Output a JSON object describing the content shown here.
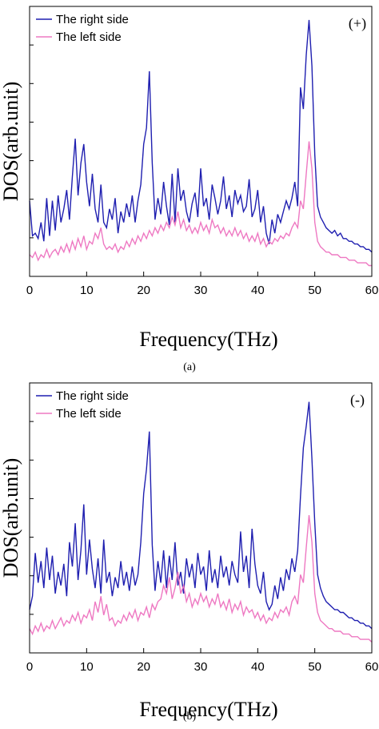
{
  "chart_data": [
    {
      "type": "line",
      "caption": "(a)",
      "annotation": "(+)",
      "xlabel": "Frequency(THz)",
      "ylabel": "DOS(arb.unit)",
      "xlim": [
        0,
        60
      ],
      "xticks": [
        0,
        10,
        20,
        30,
        40,
        50,
        60
      ],
      "ylim": [
        0,
        10
      ],
      "legend": "upper left",
      "x": [
        0,
        0.5,
        1,
        1.5,
        2,
        2.5,
        3,
        3.5,
        4,
        4.5,
        5,
        5.5,
        6,
        6.5,
        7,
        7.5,
        8,
        8.5,
        9,
        9.5,
        10,
        10.5,
        11,
        11.5,
        12,
        12.5,
        13,
        13.5,
        14,
        14.5,
        15,
        15.5,
        16,
        16.5,
        17,
        17.5,
        18,
        18.5,
        19,
        19.5,
        20,
        20.5,
        21,
        21.5,
        22,
        22.5,
        23,
        23.5,
        24,
        24.5,
        25,
        25.5,
        26,
        26.5,
        27,
        27.5,
        28,
        28.5,
        29,
        29.5,
        30,
        30.5,
        31,
        31.5,
        32,
        32.5,
        33,
        33.5,
        34,
        34.5,
        35,
        35.5,
        36,
        36.5,
        37,
        37.5,
        38,
        38.5,
        39,
        39.5,
        40,
        40.5,
        41,
        41.5,
        42,
        42.5,
        43,
        43.5,
        44,
        44.5,
        45,
        45.5,
        46,
        46.5,
        47,
        47.5,
        48,
        48.5,
        49,
        49.5,
        50,
        50.5,
        51,
        51.5,
        52,
        52.5,
        53,
        53.5,
        54,
        54.5,
        55,
        55.5,
        56,
        56.5,
        57,
        57.5,
        58,
        58.5,
        59,
        59.5,
        60
      ],
      "series": [
        {
          "name": "The right side",
          "color": "#1f1fb0",
          "values": [
            2.8,
            1.5,
            1.6,
            1.4,
            2.0,
            1.3,
            2.9,
            1.5,
            2.8,
            1.7,
            3.0,
            2.0,
            2.5,
            3.2,
            2.1,
            3.7,
            5.1,
            3.0,
            4.2,
            4.9,
            3.5,
            2.6,
            3.8,
            2.5,
            2.0,
            3.4,
            2.0,
            1.8,
            2.5,
            2.1,
            2.9,
            1.6,
            2.4,
            2.0,
            2.7,
            2.2,
            3.0,
            2.0,
            2.8,
            3.4,
            4.9,
            5.5,
            7.6,
            4.2,
            2.1,
            2.9,
            2.3,
            3.5,
            2.6,
            1.9,
            3.8,
            2.0,
            4.0,
            2.8,
            3.2,
            2.4,
            2.0,
            2.7,
            3.1,
            2.2,
            4.0,
            2.6,
            2.9,
            2.1,
            3.4,
            2.9,
            2.3,
            2.8,
            3.7,
            2.5,
            3.0,
            2.2,
            3.2,
            2.7,
            3.0,
            2.4,
            2.6,
            3.6,
            2.2,
            2.5,
            3.2,
            2.0,
            2.6,
            1.6,
            1.2,
            2.1,
            1.6,
            2.3,
            2.0,
            2.4,
            2.8,
            2.5,
            2.9,
            3.5,
            2.6,
            7.0,
            6.2,
            8.2,
            9.5,
            7.8,
            4.5,
            2.6,
            2.2,
            2.0,
            1.8,
            1.7,
            1.6,
            1.7,
            1.5,
            1.6,
            1.4,
            1.4,
            1.3,
            1.3,
            1.2,
            1.2,
            1.1,
            1.1,
            1.0,
            1.0,
            0.9
          ]
        },
        {
          "name": "The left side",
          "color": "#ee78c2",
          "values": [
            0.8,
            0.7,
            0.9,
            0.6,
            0.8,
            0.7,
            1.0,
            0.7,
            0.9,
            1.0,
            0.8,
            1.1,
            0.9,
            1.2,
            0.9,
            1.3,
            1.0,
            1.4,
            1.1,
            1.5,
            1.0,
            1.3,
            1.2,
            1.6,
            1.4,
            1.8,
            1.2,
            1.0,
            1.1,
            1.0,
            1.2,
            0.9,
            1.1,
            1.0,
            1.3,
            1.1,
            1.4,
            1.2,
            1.5,
            1.3,
            1.6,
            1.4,
            1.7,
            1.5,
            1.8,
            1.6,
            1.9,
            1.7,
            2.0,
            1.8,
            2.2,
            1.9,
            2.4,
            1.8,
            2.1,
            1.7,
            1.9,
            1.6,
            1.8,
            1.6,
            2.0,
            1.7,
            1.9,
            1.6,
            2.1,
            1.8,
            1.9,
            1.6,
            1.8,
            1.5,
            1.7,
            1.5,
            1.8,
            1.5,
            1.7,
            1.4,
            1.6,
            1.3,
            1.5,
            1.3,
            1.6,
            1.2,
            1.4,
            1.1,
            1.3,
            1.2,
            1.4,
            1.3,
            1.5,
            1.4,
            1.6,
            1.5,
            1.8,
            2.0,
            1.8,
            2.8,
            2.5,
            3.8,
            5.0,
            4.0,
            2.0,
            1.3,
            1.1,
            1.0,
            0.9,
            0.9,
            0.8,
            0.8,
            0.8,
            0.7,
            0.7,
            0.7,
            0.6,
            0.6,
            0.6,
            0.5,
            0.5,
            0.5,
            0.5,
            0.4,
            0.4
          ]
        }
      ]
    },
    {
      "type": "line",
      "caption": "(b)",
      "annotation": "(-)",
      "xlabel": "Frequency(THz)",
      "ylabel": "DOS(arb.unit)",
      "xlim": [
        0,
        60
      ],
      "xticks": [
        0,
        10,
        20,
        30,
        40,
        50,
        60
      ],
      "ylim": [
        0,
        10
      ],
      "legend": "upper left",
      "x": [
        0,
        0.5,
        1,
        1.5,
        2,
        2.5,
        3,
        3.5,
        4,
        4.5,
        5,
        5.5,
        6,
        6.5,
        7,
        7.5,
        8,
        8.5,
        9,
        9.5,
        10,
        10.5,
        11,
        11.5,
        12,
        12.5,
        13,
        13.5,
        14,
        14.5,
        15,
        15.5,
        16,
        16.5,
        17,
        17.5,
        18,
        18.5,
        19,
        19.5,
        20,
        20.5,
        21,
        21.5,
        22,
        22.5,
        23,
        23.5,
        24,
        24.5,
        25,
        25.5,
        26,
        26.5,
        27,
        27.5,
        28,
        28.5,
        29,
        29.5,
        30,
        30.5,
        31,
        31.5,
        32,
        32.5,
        33,
        33.5,
        34,
        34.5,
        35,
        35.5,
        36,
        36.5,
        37,
        37.5,
        38,
        38.5,
        39,
        39.5,
        40,
        40.5,
        41,
        41.5,
        42,
        42.5,
        43,
        43.5,
        44,
        44.5,
        45,
        45.5,
        46,
        46.5,
        47,
        47.5,
        48,
        48.5,
        49,
        49.5,
        50,
        50.5,
        51,
        51.5,
        52,
        52.5,
        53,
        53.5,
        54,
        54.5,
        55,
        55.5,
        56,
        56.5,
        57,
        57.5,
        58,
        58.5,
        59,
        59.5,
        60
      ],
      "series": [
        {
          "name": "The right side",
          "color": "#1f1fb0",
          "values": [
            1.6,
            2.1,
            3.7,
            2.6,
            3.4,
            2.4,
            3.9,
            2.7,
            3.6,
            2.2,
            3.0,
            2.5,
            3.3,
            2.1,
            4.1,
            3.2,
            4.8,
            2.7,
            3.8,
            5.5,
            2.9,
            4.2,
            3.1,
            2.4,
            3.5,
            2.2,
            4.2,
            2.6,
            3.0,
            2.1,
            2.8,
            2.4,
            3.4,
            2.5,
            3.0,
            2.3,
            3.2,
            2.5,
            2.9,
            4.1,
            5.9,
            6.8,
            8.2,
            4.0,
            2.3,
            3.4,
            2.6,
            3.8,
            2.4,
            3.6,
            2.7,
            4.1,
            2.5,
            3.0,
            2.2,
            3.5,
            2.8,
            3.3,
            2.4,
            3.7,
            2.9,
            3.2,
            2.3,
            3.8,
            2.6,
            3.1,
            2.4,
            3.6,
            2.8,
            3.2,
            2.5,
            3.4,
            2.9,
            2.6,
            4.5,
            3.0,
            3.6,
            2.4,
            4.6,
            3.3,
            2.5,
            2.2,
            3.0,
            1.9,
            1.6,
            1.8,
            2.5,
            2.0,
            2.8,
            2.3,
            3.1,
            2.7,
            3.5,
            3.0,
            3.8,
            5.8,
            7.6,
            8.4,
            9.3,
            7.2,
            4.8,
            2.9,
            2.4,
            2.1,
            1.9,
            1.8,
            1.7,
            1.6,
            1.6,
            1.5,
            1.5,
            1.4,
            1.3,
            1.3,
            1.2,
            1.2,
            1.1,
            1.1,
            1.0,
            1.0,
            0.9
          ]
        },
        {
          "name": "The left side",
          "color": "#ee78c2",
          "values": [
            0.9,
            0.7,
            1.0,
            0.8,
            1.1,
            0.8,
            1.0,
            0.9,
            1.2,
            0.9,
            1.1,
            1.3,
            1.0,
            1.2,
            1.1,
            1.4,
            1.2,
            1.5,
            1.1,
            1.4,
            1.3,
            1.6,
            1.2,
            1.9,
            1.5,
            2.1,
            1.4,
            1.8,
            1.2,
            1.3,
            1.0,
            1.2,
            1.1,
            1.4,
            1.2,
            1.5,
            1.3,
            1.6,
            1.2,
            1.5,
            1.4,
            1.7,
            1.3,
            1.8,
            1.6,
            1.9,
            2.0,
            2.5,
            2.2,
            2.8,
            2.0,
            2.4,
            3.0,
            2.2,
            2.5,
            1.9,
            2.2,
            1.7,
            2.0,
            1.8,
            2.2,
            1.9,
            2.1,
            1.7,
            2.0,
            1.8,
            2.2,
            1.7,
            1.9,
            1.6,
            2.0,
            1.5,
            1.8,
            1.6,
            1.9,
            1.4,
            1.7,
            1.5,
            1.6,
            1.3,
            1.5,
            1.2,
            1.4,
            1.1,
            1.3,
            1.2,
            1.5,
            1.3,
            1.6,
            1.5,
            1.7,
            1.4,
            1.9,
            2.1,
            1.8,
            2.9,
            2.6,
            3.9,
            5.1,
            4.1,
            2.2,
            1.5,
            1.2,
            1.1,
            1.0,
            0.9,
            0.9,
            0.8,
            0.8,
            0.8,
            0.7,
            0.7,
            0.7,
            0.6,
            0.6,
            0.6,
            0.5,
            0.5,
            0.5,
            0.5,
            0.4
          ]
        }
      ]
    }
  ]
}
